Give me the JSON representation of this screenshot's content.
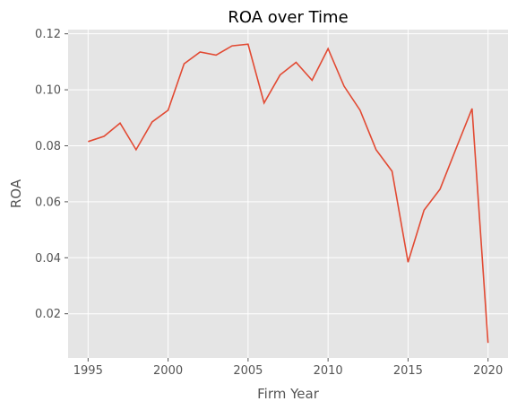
{
  "chart_data": {
    "type": "line",
    "title": "ROA over Time",
    "xlabel": "Firm Year",
    "ylabel": "ROA",
    "xlim": [
      1993.75,
      2021.25
    ],
    "ylim": [
      0.0042,
      0.1215
    ],
    "grid": true,
    "legend": "none",
    "style": "ggplot",
    "colors": {
      "background": "#e5e5e5",
      "grid": "#ffffff",
      "line": "#e24a33",
      "text": "#555555"
    },
    "xticks": [
      1995,
      2000,
      2005,
      2010,
      2015,
      2020
    ],
    "xtick_labels": [
      "1995",
      "2000",
      "2005",
      "2010",
      "2015",
      "2020"
    ],
    "yticks": [
      0.02,
      0.04,
      0.06,
      0.08,
      0.1,
      0.12
    ],
    "ytick_labels": [
      "0.02",
      "0.04",
      "0.06",
      "0.08",
      "0.10",
      "0.12"
    ],
    "series": [
      {
        "x": [
          1995,
          1996,
          1997,
          1998,
          1999,
          2000,
          2001,
          2002,
          2003,
          2004,
          2005,
          2006,
          2007,
          2008,
          2009,
          2010,
          2011,
          2012,
          2013,
          2014,
          2015,
          2016,
          2017,
          2018,
          2019,
          2020
        ],
        "values": [
          0.0815,
          0.0834,
          0.0881,
          0.0786,
          0.0885,
          0.0927,
          0.1093,
          0.1135,
          0.1124,
          0.1157,
          0.1163,
          0.0953,
          0.1053,
          0.1098,
          0.1034,
          0.1147,
          0.1013,
          0.0927,
          0.0786,
          0.0709,
          0.0384,
          0.057,
          0.0645,
          0.079,
          0.0933,
          0.0096
        ]
      }
    ]
  }
}
